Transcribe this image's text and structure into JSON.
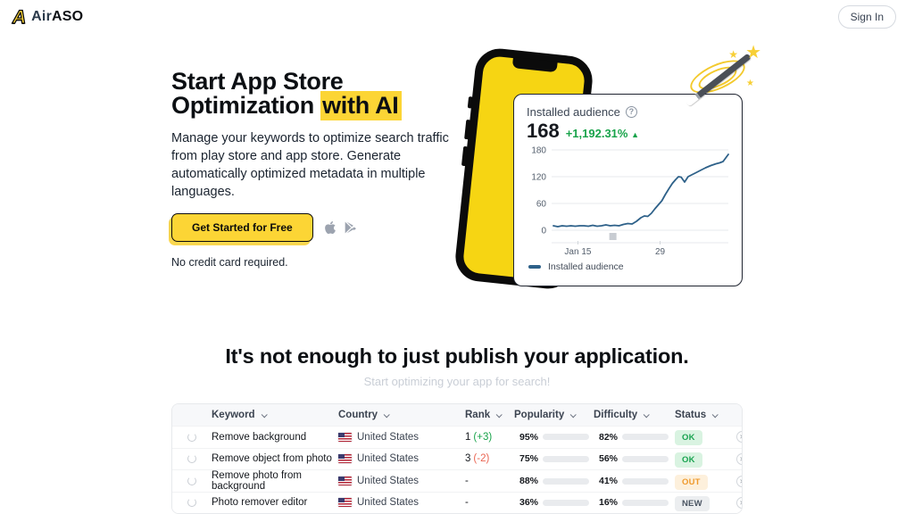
{
  "header": {
    "logo_glyph": "A",
    "brand_air": "Air",
    "brand_aso": "ASO",
    "sign_in_label": "Sign In"
  },
  "hero": {
    "title_line1": "Start App Store",
    "title_line2_pre": "Optimization ",
    "title_highlight": "with AI",
    "description": "Manage your keywords to optimize search traffic from play store and app store. Generate automatically optimized metadata in multiple languages.",
    "cta_label": "Get Started for Free",
    "note": "No credit card required.",
    "store_icons": [
      "apple-icon",
      "google-play-icon"
    ]
  },
  "widget": {
    "title": "Installed audience",
    "value": "168",
    "change": "+1,192.31%",
    "trend": "up",
    "legend": "Installed audience"
  },
  "chart_data": {
    "type": "line",
    "title": "Installed audience",
    "ylim": [
      0,
      180
    ],
    "yticks": [
      0,
      60,
      120,
      180
    ],
    "grid": true,
    "legend_position": "bottom-left",
    "xticks": [
      {
        "label": "Jan 15",
        "pos": 14
      },
      {
        "label": "29",
        "pos": 61
      }
    ],
    "series": [
      {
        "name": "Installed audience",
        "color": "#2e6189",
        "points": [
          [
            0,
            10
          ],
          [
            2.5,
            8
          ],
          [
            5,
            10
          ],
          [
            7.5,
            9
          ],
          [
            10,
            10
          ],
          [
            12.5,
            9
          ],
          [
            15,
            10
          ],
          [
            17.5,
            10
          ],
          [
            20,
            9
          ],
          [
            22.5,
            11
          ],
          [
            25,
            9
          ],
          [
            27.5,
            10
          ],
          [
            30,
            12
          ],
          [
            32.5,
            10
          ],
          [
            35,
            11
          ],
          [
            37.5,
            10
          ],
          [
            40,
            13
          ],
          [
            42.5,
            15
          ],
          [
            45,
            14
          ],
          [
            47.5,
            20
          ],
          [
            50,
            28
          ],
          [
            52,
            32
          ],
          [
            54,
            31
          ],
          [
            56,
            38
          ],
          [
            58,
            48
          ],
          [
            60,
            57
          ],
          [
            62,
            66
          ],
          [
            64,
            80
          ],
          [
            66,
            93
          ],
          [
            68,
            105
          ],
          [
            70,
            114
          ],
          [
            71.5,
            120
          ],
          [
            73,
            119
          ],
          [
            75,
            108
          ],
          [
            77,
            120
          ],
          [
            79,
            124
          ],
          [
            81,
            128
          ],
          [
            84,
            134
          ],
          [
            87,
            140
          ],
          [
            90,
            145
          ],
          [
            93,
            149
          ],
          [
            95,
            151
          ],
          [
            97,
            154
          ],
          [
            100,
            170
          ]
        ]
      }
    ]
  },
  "section": {
    "title": "It's not enough to just publish your application.",
    "subtitle": "Start optimizing your app for search!"
  },
  "table": {
    "columns": [
      "Keyword",
      "Country",
      "Rank",
      "Popularity",
      "Difficulty",
      "Status"
    ],
    "rows": [
      {
        "keyword": "Remove background",
        "country": "United States",
        "rank": "1",
        "rank_change": "(+3)",
        "rank_dir": "up",
        "popularity": 95,
        "popularity_color": "#22c55e",
        "difficulty": 82,
        "difficulty_color": "#ef4444",
        "status": "OK",
        "status_type": "ok"
      },
      {
        "keyword": "Remove object from photo",
        "country": "United States",
        "rank": "3",
        "rank_change": "(-2)",
        "rank_dir": "down",
        "popularity": 75,
        "popularity_color": "#22c55e",
        "difficulty": 56,
        "difficulty_color": "#eab308",
        "status": "OK",
        "status_type": "ok"
      },
      {
        "keyword": "Remove photo from background",
        "country": "United States",
        "rank": "-",
        "rank_change": "",
        "rank_dir": "",
        "popularity": 88,
        "popularity_color": "#22c55e",
        "difficulty": 41,
        "difficulty_color": "#22c55e",
        "status": "OUT",
        "status_type": "out"
      },
      {
        "keyword": "Photo remover editor",
        "country": "United States",
        "rank": "-",
        "rank_change": "",
        "rank_dir": "",
        "popularity": 36,
        "popularity_color": "#eab308",
        "difficulty": 16,
        "difficulty_color": "#22c55e",
        "status": "NEW",
        "status_type": "new"
      }
    ]
  }
}
